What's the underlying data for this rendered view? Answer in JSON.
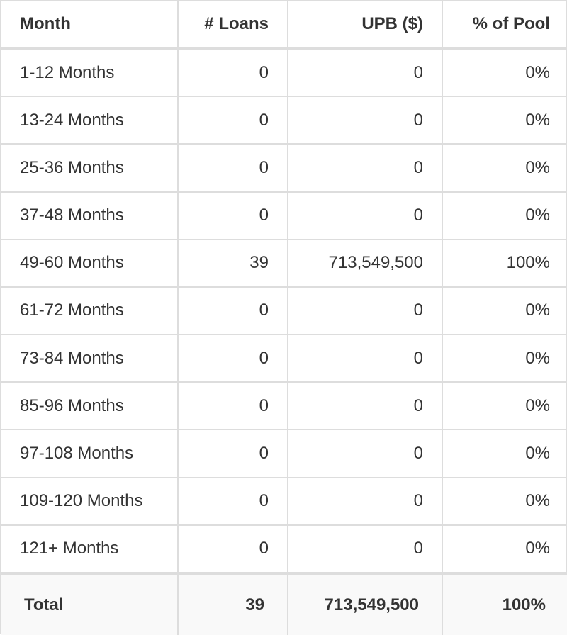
{
  "table": {
    "header": [
      "Month",
      "# Loans",
      "UPB ($)",
      "% of Pool"
    ],
    "rows": [
      [
        "1-12 Months",
        "0",
        "0",
        "0%"
      ],
      [
        "13-24 Months",
        "0",
        "0",
        "0%"
      ],
      [
        "25-36 Months",
        "0",
        "0",
        "0%"
      ],
      [
        "37-48 Months",
        "0",
        "0",
        "0%"
      ],
      [
        "49-60 Months",
        "39",
        "713,549,500",
        "100%"
      ],
      [
        "61-72 Months",
        "0",
        "0",
        "0%"
      ],
      [
        "73-84 Months",
        "0",
        "0",
        "0%"
      ],
      [
        "85-96 Months",
        "0",
        "0",
        "0%"
      ],
      [
        "97-108 Months",
        "0",
        "0",
        "0%"
      ],
      [
        "109-120 Months",
        "0",
        "0",
        "0%"
      ],
      [
        "121+ Months",
        "0",
        "0",
        "0%"
      ]
    ],
    "total": [
      "Total",
      "39",
      "713,549,500",
      "100%"
    ]
  }
}
